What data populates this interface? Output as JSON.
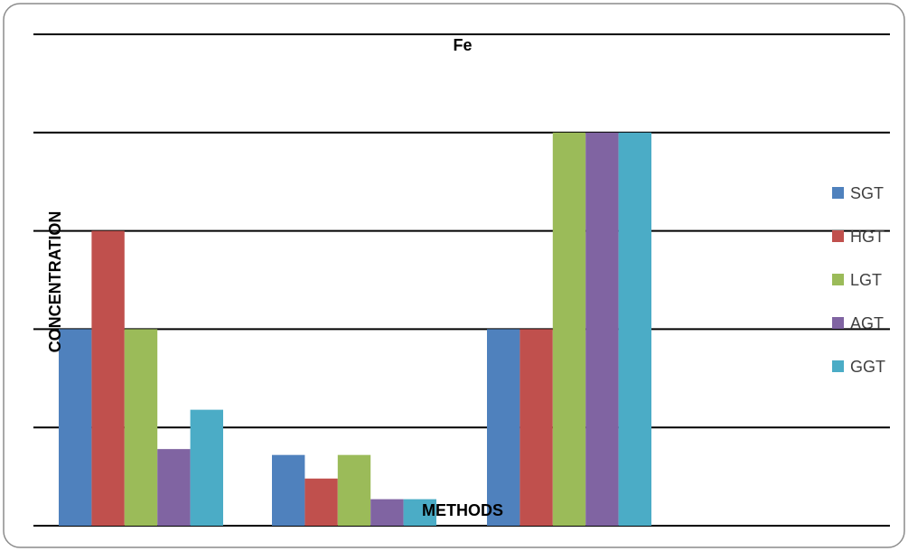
{
  "chart_data": {
    "type": "bar",
    "title": "Fe",
    "xlabel": "METHODS",
    "ylabel": "CONCENTRATION",
    "categories": [
      "",
      "",
      ""
    ],
    "ylim": [
      0,
      5
    ],
    "grid": true,
    "legend_position": "right",
    "series": [
      {
        "name": "SGT",
        "color": "#4f81bd",
        "values": [
          2.0,
          0.72,
          2.0
        ]
      },
      {
        "name": "HGT",
        "color": "#c0504d",
        "values": [
          3.0,
          0.48,
          2.0
        ]
      },
      {
        "name": "LGT",
        "color": "#9bbb59",
        "values": [
          2.0,
          0.72,
          4.0
        ]
      },
      {
        "name": "AGT",
        "color": "#8064a2",
        "values": [
          0.78,
          0.27,
          4.0
        ]
      },
      {
        "name": "GGT",
        "color": "#4bacc6",
        "values": [
          1.18,
          0.27,
          4.0
        ]
      }
    ]
  }
}
